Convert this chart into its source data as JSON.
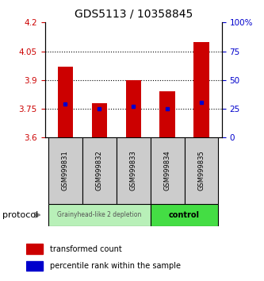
{
  "title": "GDS5113 / 10358845",
  "samples": [
    "GSM999831",
    "GSM999832",
    "GSM999833",
    "GSM999834",
    "GSM999835"
  ],
  "bar_bottom": 3.6,
  "bar_tops": [
    3.97,
    3.78,
    3.9,
    3.84,
    4.1
  ],
  "blue_markers": [
    3.775,
    3.752,
    3.762,
    3.752,
    3.785
  ],
  "ylim": [
    3.6,
    4.2
  ],
  "yticks_left": [
    3.6,
    3.75,
    3.9,
    4.05,
    4.2
  ],
  "yticks_right": [
    0,
    25,
    50,
    75,
    100
  ],
  "bar_color": "#cc0000",
  "blue_color": "#0000cc",
  "group1_samples": [
    0,
    1,
    2
  ],
  "group2_samples": [
    3,
    4
  ],
  "group1_label": "Grainyhead-like 2 depletion",
  "group2_label": "control",
  "group1_color": "#b8f0b8",
  "group2_color": "#44dd44",
  "protocol_label": "protocol",
  "legend_red": "transformed count",
  "legend_blue": "percentile rank within the sample",
  "title_fontsize": 10,
  "bar_width": 0.45,
  "sample_box_color": "#cccccc",
  "arrow_color": "#888888"
}
